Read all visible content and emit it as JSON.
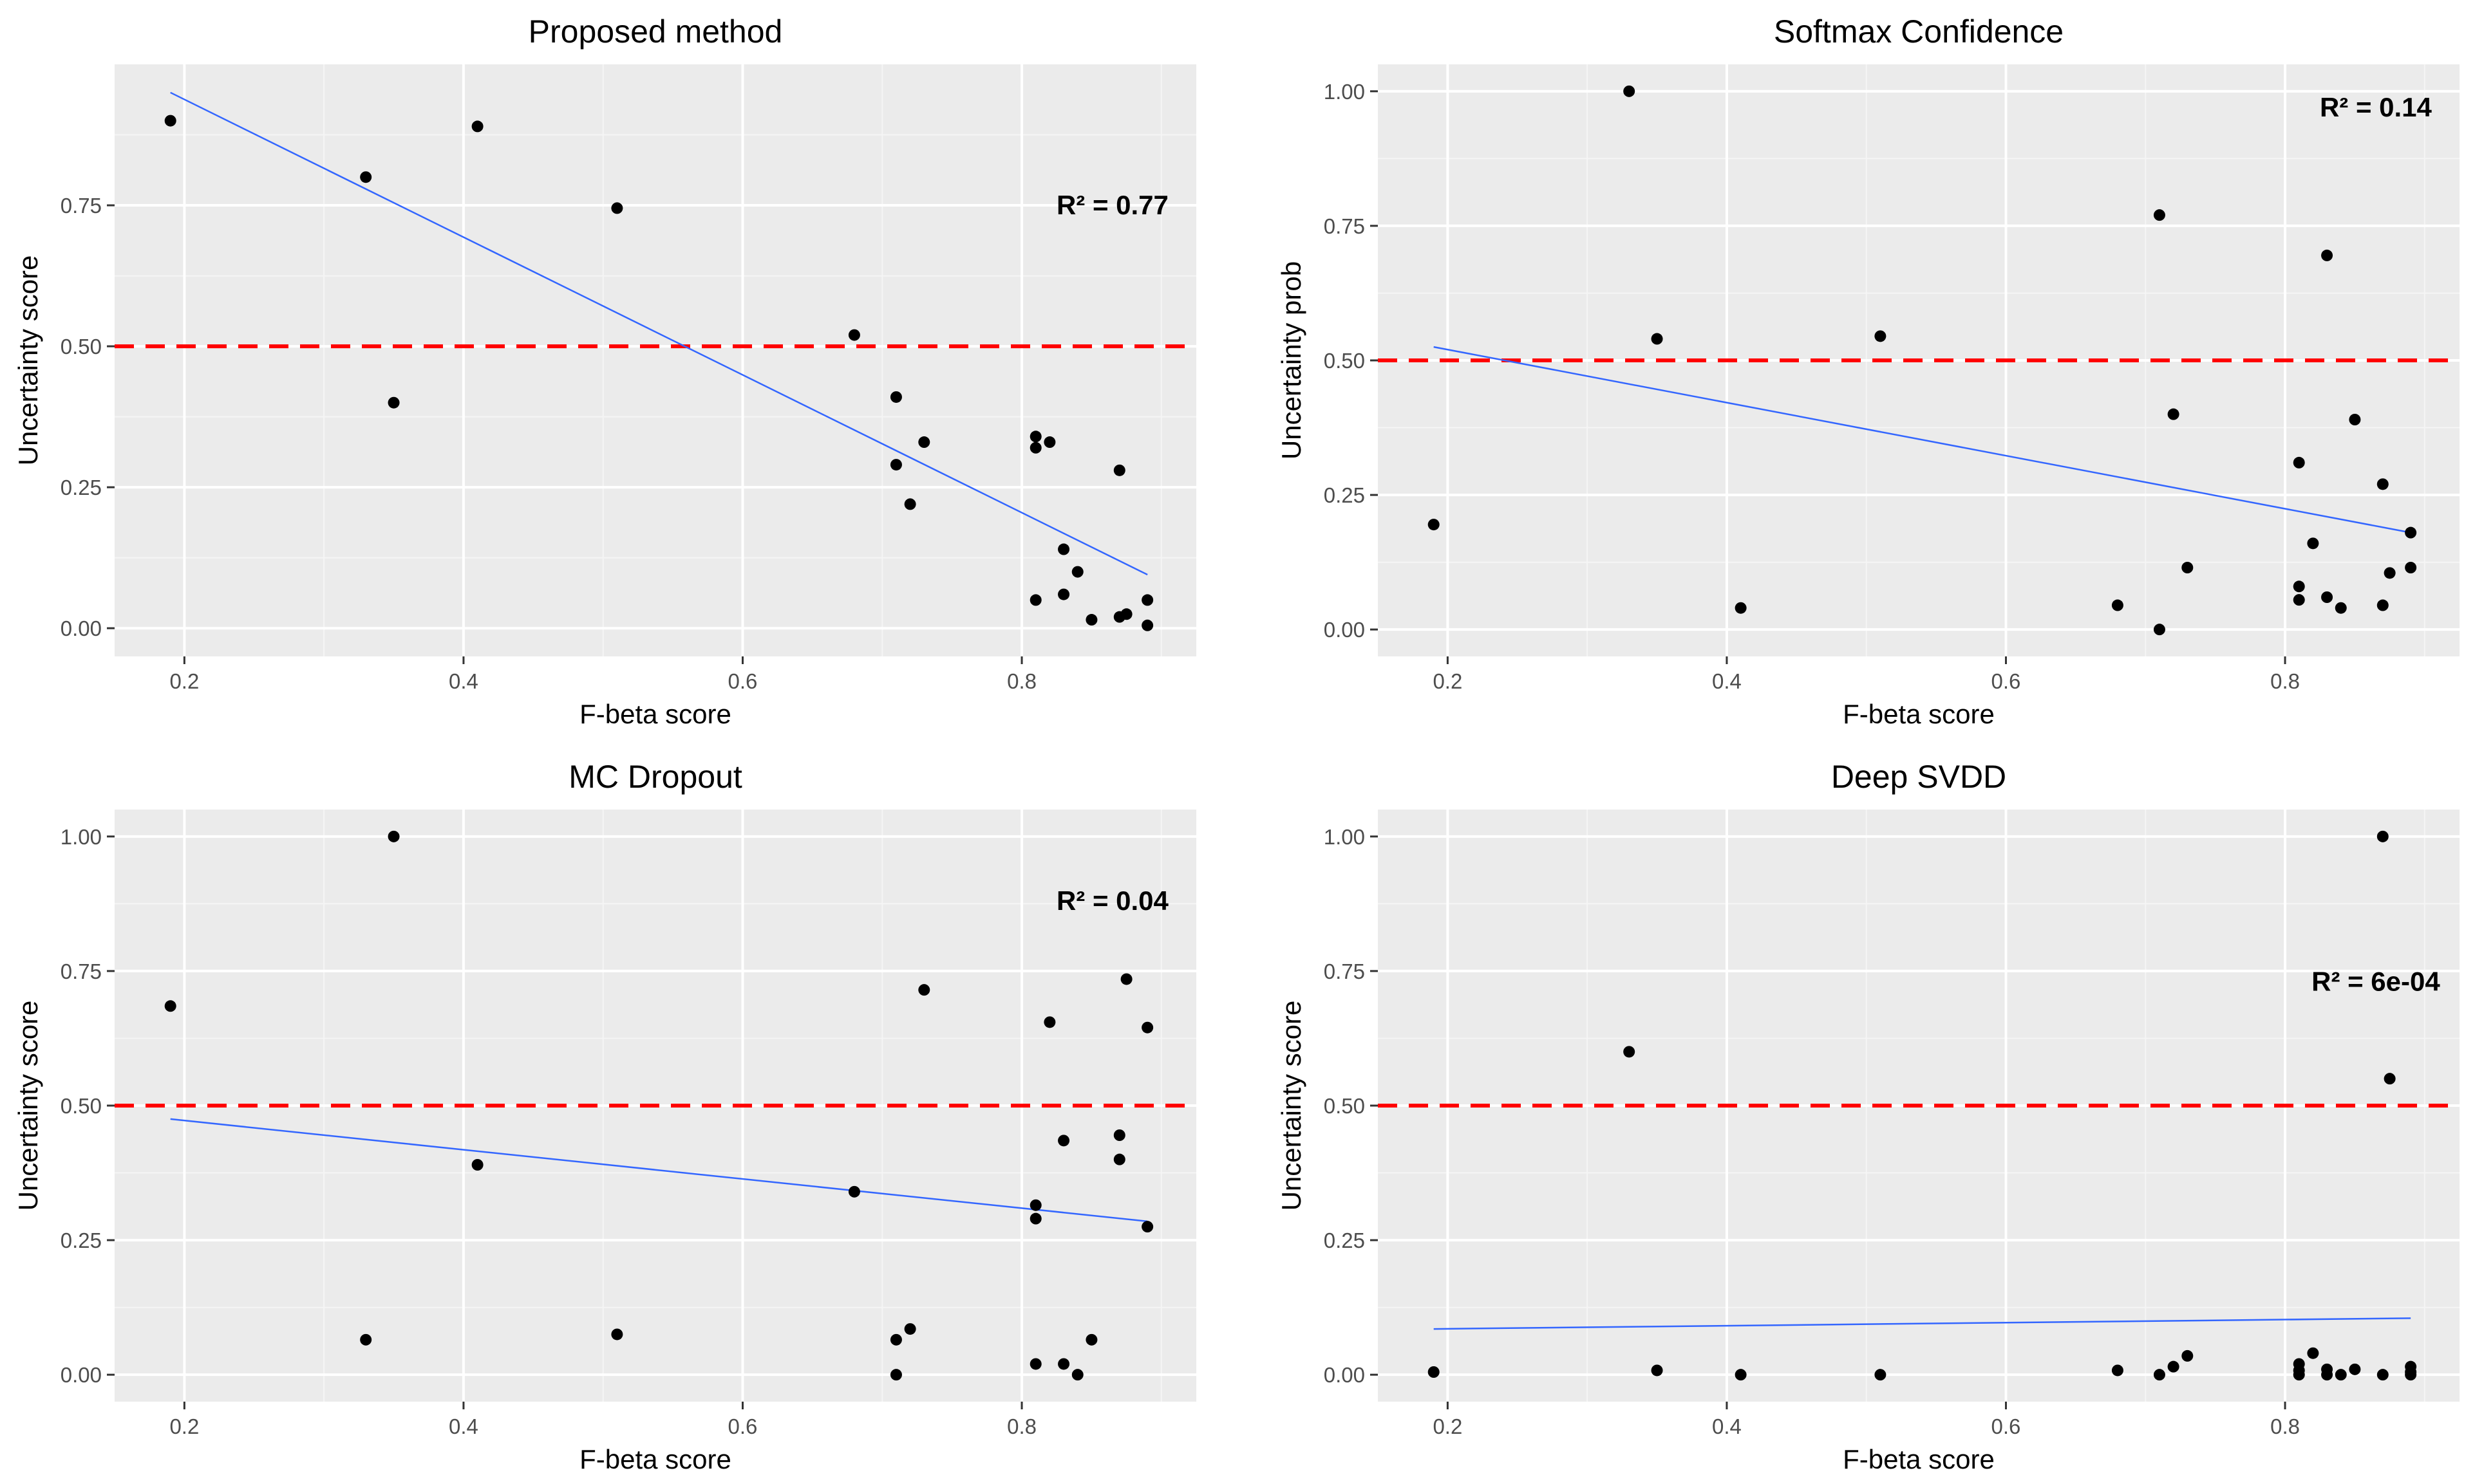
{
  "chart_data": [
    {
      "type": "scatter",
      "title": "Proposed method",
      "xlabel": "F-beta score",
      "ylabel": "Uncertainty score",
      "annotation": "R² = 0.77",
      "xlim": [
        0.15,
        0.925
      ],
      "ylim": [
        -0.05,
        1.0
      ],
      "xticks": [
        0.2,
        0.4,
        0.6,
        0.8
      ],
      "xtick_labels": [
        "0.2",
        "0.4",
        "0.6",
        "0.8"
      ],
      "yticks": [
        0.0,
        0.25,
        0.5,
        0.75
      ],
      "ytick_labels": [
        "0.00",
        "0.25",
        "0.50",
        "0.75"
      ],
      "threshold": 0.5,
      "points": [
        [
          0.19,
          0.9
        ],
        [
          0.33,
          0.8
        ],
        [
          0.35,
          0.4
        ],
        [
          0.41,
          0.89
        ],
        [
          0.51,
          0.745
        ],
        [
          0.68,
          0.52
        ],
        [
          0.71,
          0.41
        ],
        [
          0.71,
          0.29
        ],
        [
          0.72,
          0.22
        ],
        [
          0.73,
          0.33
        ],
        [
          0.81,
          0.34
        ],
        [
          0.81,
          0.32
        ],
        [
          0.81,
          0.05
        ],
        [
          0.82,
          0.33
        ],
        [
          0.83,
          0.14
        ],
        [
          0.83,
          0.06
        ],
        [
          0.84,
          0.1
        ],
        [
          0.85,
          0.015
        ],
        [
          0.87,
          0.28
        ],
        [
          0.87,
          0.02
        ],
        [
          0.875,
          0.025
        ],
        [
          0.89,
          0.05
        ],
        [
          0.89,
          0.005
        ]
      ],
      "fit_line": [
        [
          0.19,
          0.95
        ],
        [
          0.89,
          0.095
        ]
      ]
    },
    {
      "type": "scatter",
      "title": "Softmax Confidence",
      "xlabel": "F-beta score",
      "ylabel": "Uncertainty prob",
      "annotation": "R² = 0.14",
      "xlim": [
        0.15,
        0.925
      ],
      "ylim": [
        -0.05,
        1.05
      ],
      "xticks": [
        0.2,
        0.4,
        0.6,
        0.8
      ],
      "xtick_labels": [
        "0.2",
        "0.4",
        "0.6",
        "0.8"
      ],
      "yticks": [
        0.0,
        0.25,
        0.5,
        0.75,
        1.0
      ],
      "ytick_labels": [
        "0.00",
        "0.25",
        "0.50",
        "0.75",
        "1.00"
      ],
      "threshold": 0.5,
      "points": [
        [
          0.19,
          0.195
        ],
        [
          0.33,
          1.0
        ],
        [
          0.35,
          0.54
        ],
        [
          0.41,
          0.04
        ],
        [
          0.51,
          0.545
        ],
        [
          0.68,
          0.045
        ],
        [
          0.71,
          0.77
        ],
        [
          0.71,
          0.0
        ],
        [
          0.72,
          0.4
        ],
        [
          0.73,
          0.115
        ],
        [
          0.81,
          0.31
        ],
        [
          0.81,
          0.08
        ],
        [
          0.81,
          0.055
        ],
        [
          0.82,
          0.16
        ],
        [
          0.83,
          0.695
        ],
        [
          0.83,
          0.06
        ],
        [
          0.84,
          0.04
        ],
        [
          0.85,
          0.39
        ],
        [
          0.87,
          0.27
        ],
        [
          0.87,
          0.045
        ],
        [
          0.875,
          0.105
        ],
        [
          0.89,
          0.18
        ],
        [
          0.89,
          0.115
        ]
      ],
      "fit_line": [
        [
          0.19,
          0.525
        ],
        [
          0.89,
          0.18
        ]
      ]
    },
    {
      "type": "scatter",
      "title": "MC Dropout",
      "xlabel": "F-beta score",
      "ylabel": "Uncertainty score",
      "annotation": "R² = 0.04",
      "xlim": [
        0.15,
        0.925
      ],
      "ylim": [
        -0.05,
        1.05
      ],
      "xticks": [
        0.2,
        0.4,
        0.6,
        0.8
      ],
      "xtick_labels": [
        "0.2",
        "0.4",
        "0.6",
        "0.8"
      ],
      "yticks": [
        0.0,
        0.25,
        0.5,
        0.75,
        1.0
      ],
      "ytick_labels": [
        "0.00",
        "0.25",
        "0.50",
        "0.75",
        "1.00"
      ],
      "threshold": 0.5,
      "points": [
        [
          0.19,
          0.685
        ],
        [
          0.33,
          0.065
        ],
        [
          0.35,
          1.0
        ],
        [
          0.41,
          0.39
        ],
        [
          0.51,
          0.075
        ],
        [
          0.68,
          0.34
        ],
        [
          0.71,
          0.065
        ],
        [
          0.71,
          0.0
        ],
        [
          0.72,
          0.085
        ],
        [
          0.73,
          0.715
        ],
        [
          0.81,
          0.315
        ],
        [
          0.81,
          0.29
        ],
        [
          0.81,
          0.02
        ],
        [
          0.82,
          0.655
        ],
        [
          0.83,
          0.435
        ],
        [
          0.83,
          0.02
        ],
        [
          0.84,
          0.0
        ],
        [
          0.85,
          0.065
        ],
        [
          0.87,
          0.445
        ],
        [
          0.87,
          0.4
        ],
        [
          0.875,
          0.735
        ],
        [
          0.89,
          0.645
        ],
        [
          0.89,
          0.275
        ]
      ],
      "fit_line": [
        [
          0.19,
          0.475
        ],
        [
          0.89,
          0.285
        ]
      ]
    },
    {
      "type": "scatter",
      "title": "Deep SVDD",
      "xlabel": "F-beta score",
      "ylabel": "Uncertainty score",
      "annotation": "R² = 6e-04",
      "xlim": [
        0.15,
        0.925
      ],
      "ylim": [
        -0.05,
        1.05
      ],
      "xticks": [
        0.2,
        0.4,
        0.6,
        0.8
      ],
      "xtick_labels": [
        "0.2",
        "0.4",
        "0.6",
        "0.8"
      ],
      "yticks": [
        0.0,
        0.25,
        0.5,
        0.75,
        1.0
      ],
      "ytick_labels": [
        "0.00",
        "0.25",
        "0.50",
        "0.75",
        "1.00"
      ],
      "threshold": 0.5,
      "points": [
        [
          0.19,
          0.005
        ],
        [
          0.33,
          0.6
        ],
        [
          0.35,
          0.008
        ],
        [
          0.41,
          0.0
        ],
        [
          0.51,
          0.0
        ],
        [
          0.68,
          0.008
        ],
        [
          0.71,
          0.0
        ],
        [
          0.72,
          0.015
        ],
        [
          0.73,
          0.035
        ],
        [
          0.81,
          0.02
        ],
        [
          0.81,
          0.008
        ],
        [
          0.81,
          0.0
        ],
        [
          0.82,
          0.04
        ],
        [
          0.83,
          0.01
        ],
        [
          0.83,
          0.0
        ],
        [
          0.84,
          0.0
        ],
        [
          0.85,
          0.01
        ],
        [
          0.87,
          1.0
        ],
        [
          0.87,
          0.0
        ],
        [
          0.875,
          0.55
        ],
        [
          0.89,
          0.015
        ],
        [
          0.89,
          0.005
        ],
        [
          0.89,
          0.0
        ]
      ],
      "fit_line": [
        [
          0.19,
          0.085
        ],
        [
          0.89,
          0.105
        ]
      ]
    }
  ],
  "style": {
    "panel_bg": "#ebebeb",
    "grid_major": "#ffffff",
    "tick_color": "#333333",
    "point_color": "#000000",
    "fit_color": "#3366ff",
    "threshold_color": "#ff0000"
  }
}
